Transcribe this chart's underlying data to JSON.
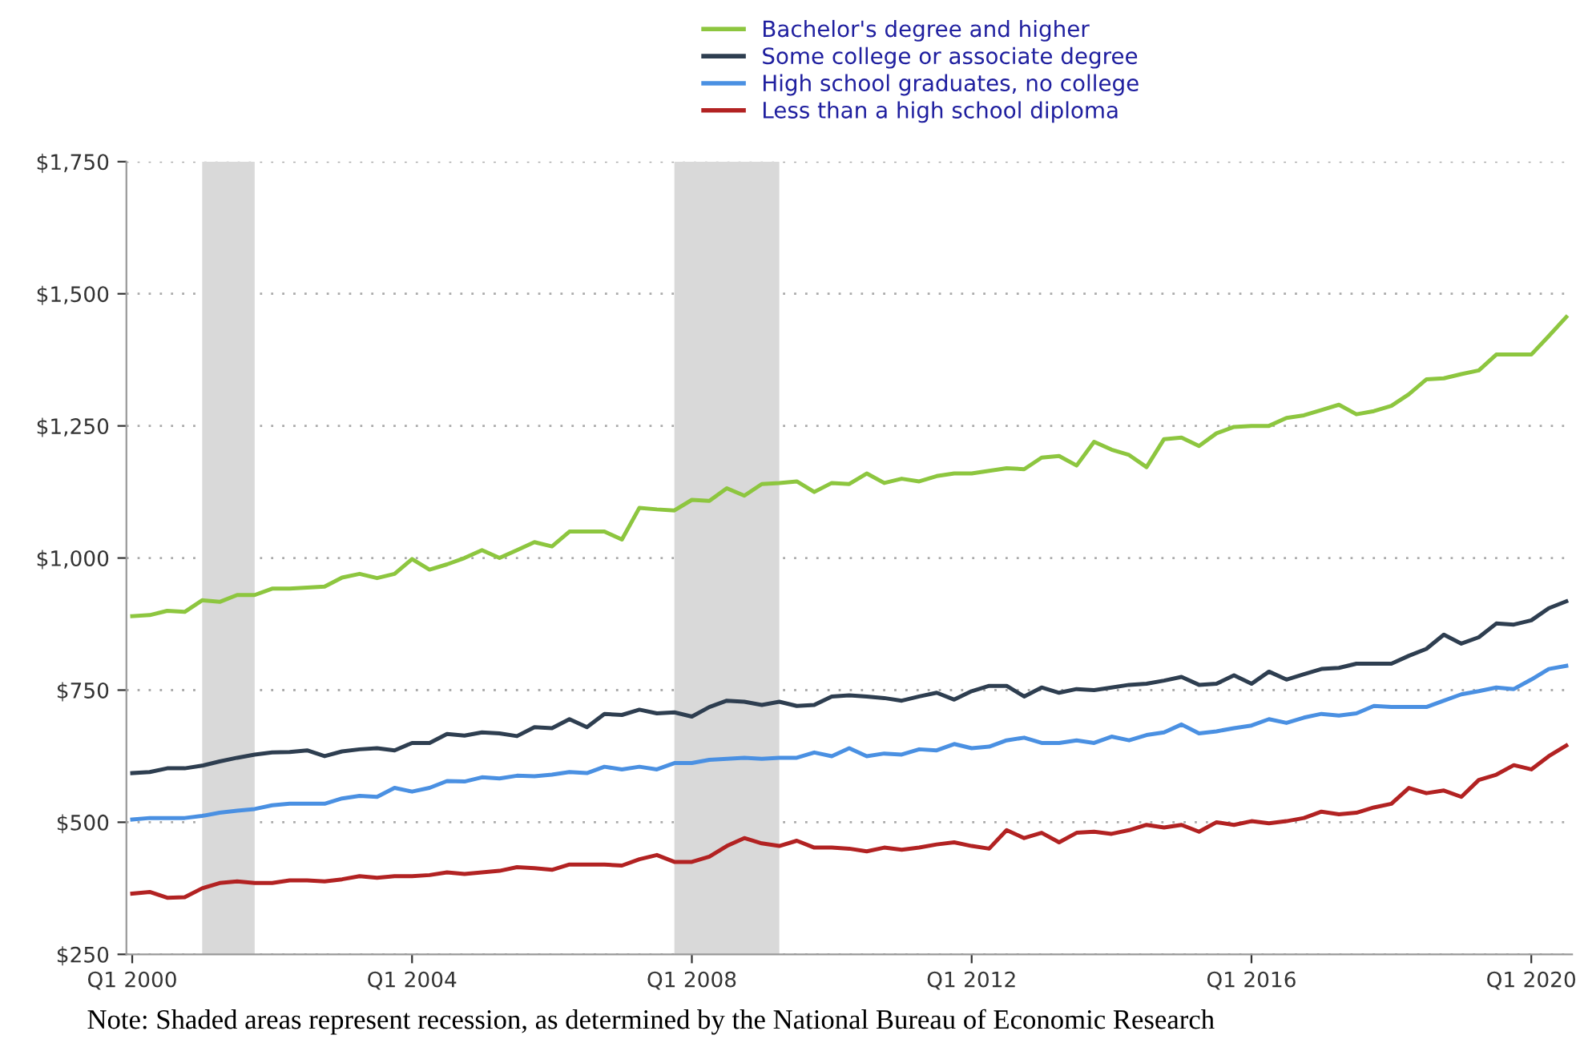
{
  "chart_data": {
    "type": "line",
    "x": [
      "2000-01",
      "2000-04",
      "2000-07",
      "2000-10",
      "2001-01",
      "2001-04",
      "2001-07",
      "2001-10",
      "2002-01",
      "2002-04",
      "2002-07",
      "2002-10",
      "2003-01",
      "2003-04",
      "2003-07",
      "2003-10",
      "2004-01",
      "2004-04",
      "2004-07",
      "2004-10",
      "2005-01",
      "2005-04",
      "2005-07",
      "2005-10",
      "2006-01",
      "2006-04",
      "2006-07",
      "2006-10",
      "2007-01",
      "2007-04",
      "2007-07",
      "2007-10",
      "2008-01",
      "2008-04",
      "2008-07",
      "2008-10",
      "2009-01",
      "2009-04",
      "2009-07",
      "2009-10",
      "2010-01",
      "2010-04",
      "2010-07",
      "2010-10",
      "2011-01",
      "2011-04",
      "2011-07",
      "2011-10",
      "2012-01",
      "2012-04",
      "2012-07",
      "2012-10",
      "2013-01",
      "2013-04",
      "2013-07",
      "2013-10",
      "2014-01",
      "2014-04",
      "2014-07",
      "2014-10",
      "2015-01",
      "2015-04",
      "2015-07",
      "2015-10",
      "2016-01",
      "2016-04",
      "2016-07",
      "2016-10",
      "2017-01",
      "2017-04",
      "2017-07",
      "2017-10",
      "2018-01",
      "2018-04",
      "2018-07",
      "2018-10",
      "2019-01",
      "2019-04",
      "2019-07",
      "2019-10",
      "2020-01",
      "2020-04",
      "2020-07"
    ],
    "xlim": [
      "1999-12",
      "2020-08"
    ],
    "xticks": [
      {
        "value": "2000-01",
        "label": "Q1 2000"
      },
      {
        "value": "2004-01",
        "label": "Q1 2004"
      },
      {
        "value": "2008-01",
        "label": "Q1 2008"
      },
      {
        "value": "2012-01",
        "label": "Q1 2012"
      },
      {
        "value": "2016-01",
        "label": "Q1 2016"
      },
      {
        "value": "2020-01",
        "label": "Q1 2020"
      }
    ],
    "ylim": [
      250,
      1750
    ],
    "yticks": [
      {
        "value": 250,
        "label": "$250"
      },
      {
        "value": 500,
        "label": "$500"
      },
      {
        "value": 750,
        "label": "$750"
      },
      {
        "value": 1000,
        "label": "$1,000"
      },
      {
        "value": 1250,
        "label": "$1,250"
      },
      {
        "value": 1500,
        "label": "$1,500"
      },
      {
        "value": 1750,
        "label": "$1,750"
      }
    ],
    "grid": "y",
    "legend": "top",
    "marker": "none",
    "line_style": "solid",
    "bands": [
      {
        "axis": "x",
        "from": "2001-01",
        "to": "2001-10",
        "color": "#d9d9d9"
      },
      {
        "axis": "x",
        "from": "2007-10",
        "to": "2009-04",
        "color": "#d9d9d9"
      }
    ],
    "series": [
      {
        "name": "Bachelor's degree and higher",
        "color": "#8dc63f",
        "values": [
          890,
          892,
          900,
          898,
          920,
          917,
          930,
          930,
          942,
          942,
          944,
          946,
          963,
          970,
          962,
          970,
          998,
          978,
          988,
          1000,
          1015,
          1000,
          1015,
          1030,
          1022,
          1050,
          1050,
          1050,
          1035,
          1095,
          1092,
          1090,
          1110,
          1108,
          1132,
          1118,
          1140,
          1142,
          1145,
          1125,
          1142,
          1140,
          1160,
          1142,
          1150,
          1145,
          1155,
          1160,
          1160,
          1165,
          1170,
          1168,
          1190,
          1193,
          1175,
          1220,
          1205,
          1195,
          1172,
          1225,
          1228,
          1212,
          1236,
          1248,
          1250,
          1250,
          1265,
          1270,
          1280,
          1290,
          1272,
          1278,
          1288,
          1310,
          1338,
          1340,
          1348,
          1355,
          1385,
          1385,
          1385,
          1420,
          1456
        ]
      },
      {
        "name": "Some college or associate degree",
        "color": "#2e3e50",
        "values": [
          593,
          595,
          602,
          602,
          607,
          615,
          622,
          628,
          632,
          633,
          636,
          625,
          634,
          638,
          640,
          636,
          650,
          650,
          667,
          664,
          670,
          668,
          663,
          680,
          678,
          695,
          680,
          705,
          703,
          713,
          706,
          708,
          700,
          718,
          730,
          728,
          722,
          728,
          720,
          722,
          738,
          740,
          738,
          735,
          730,
          738,
          745,
          732,
          748,
          758,
          758,
          738,
          755,
          745,
          752,
          750,
          755,
          760,
          762,
          768,
          775,
          760,
          762,
          778,
          762,
          785,
          770,
          780,
          790,
          792,
          800,
          800,
          800,
          815,
          828,
          855,
          838,
          850,
          876,
          874,
          882,
          905,
          918
        ]
      },
      {
        "name": "High school graduates, no college",
        "color": "#4a90e2",
        "values": [
          505,
          508,
          508,
          508,
          512,
          518,
          522,
          525,
          532,
          535,
          535,
          535,
          545,
          550,
          548,
          565,
          558,
          565,
          578,
          577,
          585,
          583,
          588,
          587,
          590,
          595,
          593,
          605,
          600,
          605,
          600,
          612,
          612,
          618,
          620,
          622,
          620,
          622,
          622,
          632,
          625,
          640,
          625,
          630,
          628,
          638,
          636,
          648,
          640,
          643,
          655,
          660,
          650,
          650,
          655,
          650,
          662,
          655,
          665,
          670,
          685,
          668,
          672,
          678,
          683,
          695,
          688,
          698,
          705,
          702,
          706,
          720,
          718,
          718,
          718,
          730,
          742,
          748,
          755,
          752,
          770,
          790,
          796
        ]
      },
      {
        "name": "Less than a high school diploma",
        "color": "#b22222",
        "values": [
          365,
          368,
          357,
          358,
          375,
          385,
          388,
          385,
          385,
          390,
          390,
          388,
          392,
          398,
          395,
          398,
          398,
          400,
          405,
          402,
          405,
          408,
          415,
          413,
          410,
          420,
          420,
          420,
          418,
          430,
          438,
          425,
          425,
          435,
          455,
          470,
          460,
          455,
          465,
          452,
          452,
          450,
          445,
          452,
          448,
          452,
          458,
          462,
          455,
          450,
          485,
          470,
          480,
          462,
          480,
          482,
          478,
          485,
          495,
          490,
          495,
          482,
          500,
          495,
          502,
          498,
          502,
          508,
          520,
          515,
          518,
          528,
          535,
          565,
          555,
          560,
          548,
          580,
          590,
          608,
          600,
          625,
          645
        ]
      }
    ],
    "annotations": [
      "Note: Shaded areas represent recession, as determined by the National Bureau of Economic Research"
    ]
  }
}
